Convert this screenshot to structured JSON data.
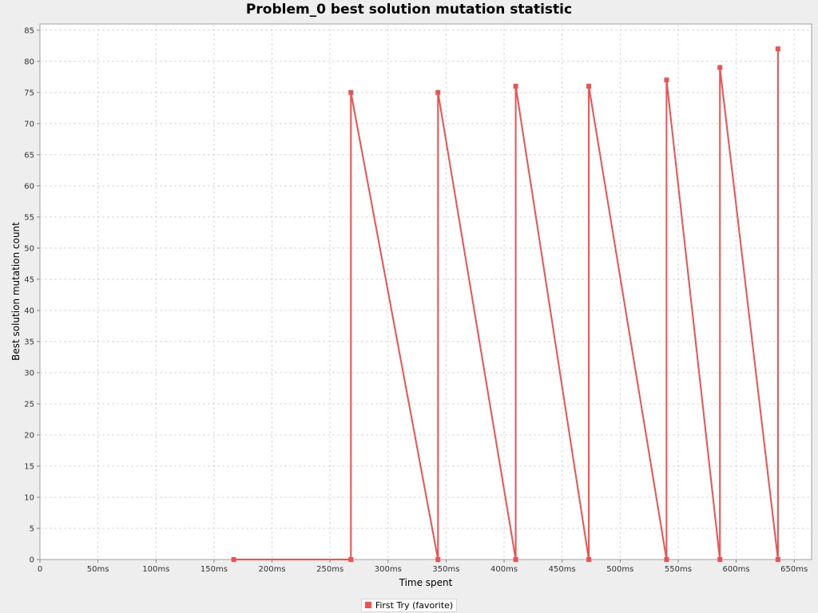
{
  "chart_data": {
    "type": "line",
    "title": "Problem_0 best solution mutation statistic",
    "xlabel": "Time spent",
    "ylabel": "Best solution mutation count",
    "xlim": [
      0,
      665
    ],
    "ylim": [
      0,
      86
    ],
    "x_ticks": [
      0,
      50,
      100,
      150,
      200,
      250,
      300,
      350,
      400,
      450,
      500,
      550,
      600,
      650
    ],
    "x_tick_labels": [
      "0",
      "50ms",
      "100ms",
      "150ms",
      "200ms",
      "250ms",
      "300ms",
      "350ms",
      "400ms",
      "450ms",
      "500ms",
      "550ms",
      "600ms",
      "650ms"
    ],
    "y_ticks": [
      0,
      5,
      10,
      15,
      20,
      25,
      30,
      35,
      40,
      45,
      50,
      55,
      60,
      65,
      70,
      75,
      80,
      85
    ],
    "grid": true,
    "legend_position": "bottom",
    "series": [
      {
        "name": "First Try (favorite)",
        "color": "#f05050",
        "points": [
          [
            167,
            0
          ],
          [
            268,
            0
          ],
          [
            268,
            75
          ],
          [
            343,
            0
          ],
          [
            343,
            75
          ],
          [
            410,
            0
          ],
          [
            410,
            76
          ],
          [
            473,
            0
          ],
          [
            473,
            76
          ],
          [
            540,
            0
          ],
          [
            540,
            77
          ],
          [
            586,
            0
          ],
          [
            586,
            79
          ],
          [
            636,
            0
          ],
          [
            636,
            82
          ]
        ]
      }
    ]
  }
}
